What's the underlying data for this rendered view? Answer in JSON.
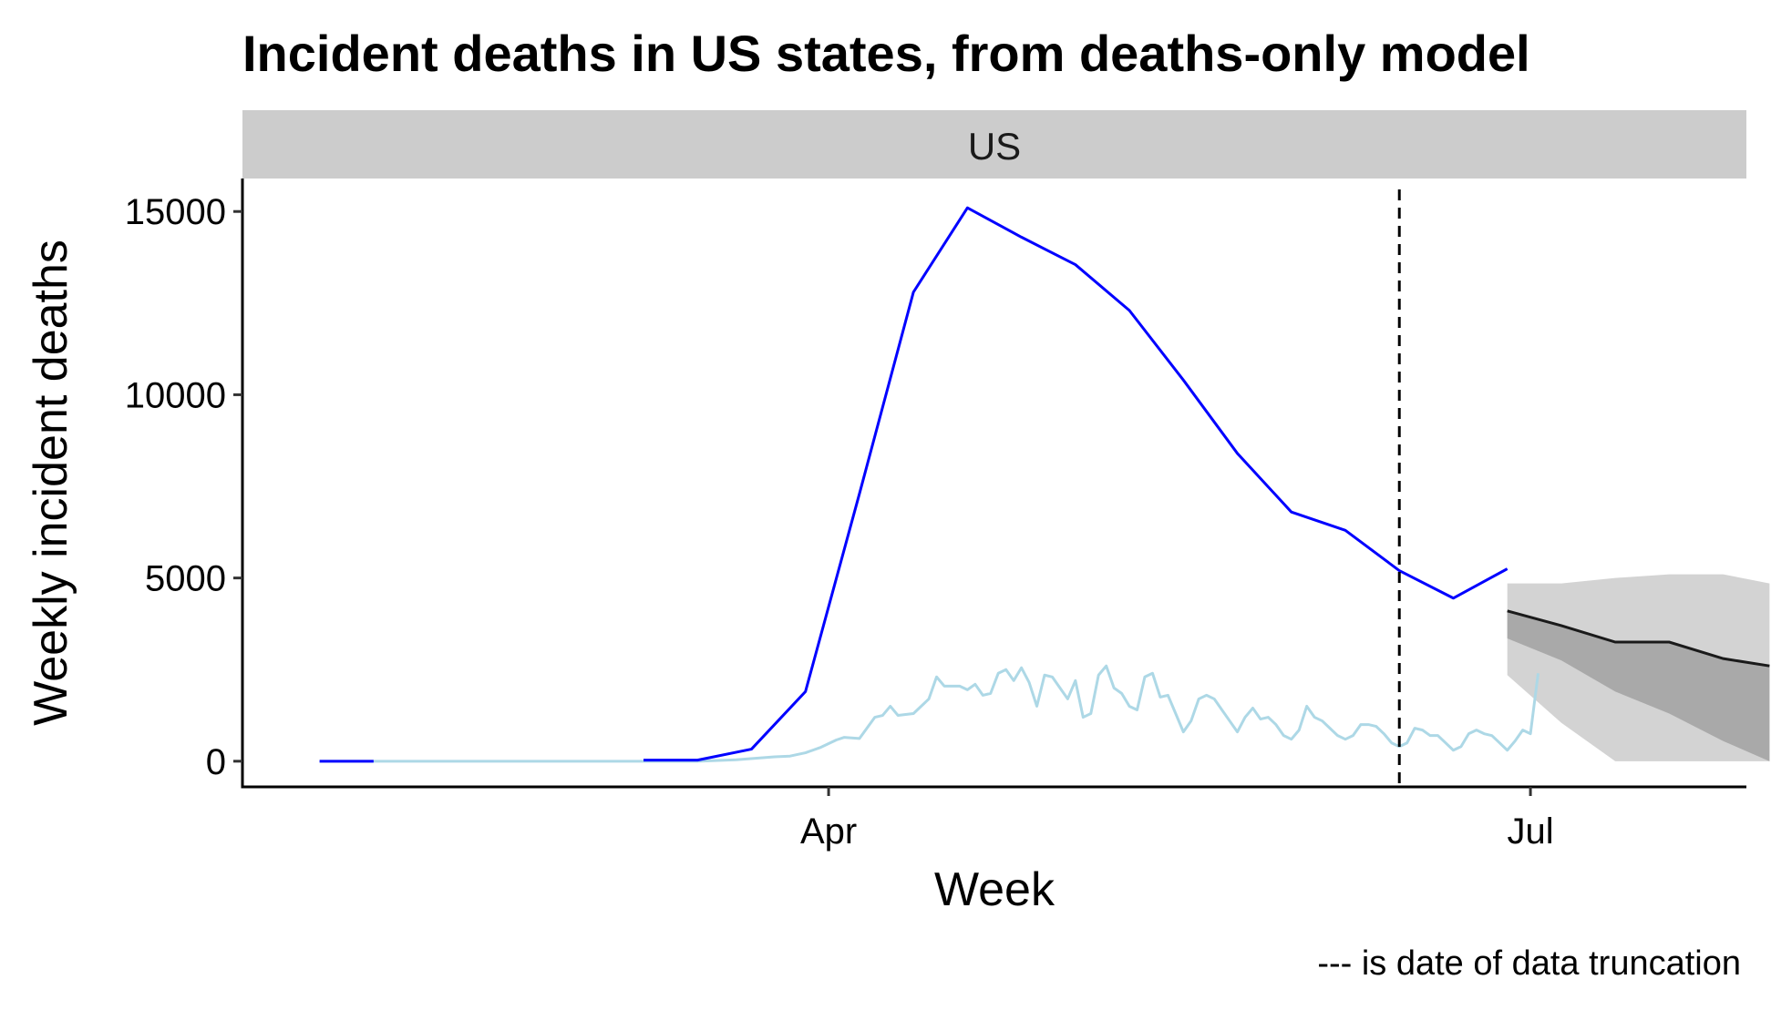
{
  "chart_data": {
    "type": "line",
    "title": "Incident deaths in US states, from deaths-only model",
    "facet": "US",
    "xlabel": "Week",
    "ylabel": "Weekly incident deaths",
    "caption": "--- is date of data truncation",
    "x_ticks": [
      {
        "label": "Apr",
        "date": "2020-04-01"
      },
      {
        "label": "Jul",
        "date": "2020-07-01"
      }
    ],
    "y_ticks": [
      0,
      5000,
      10000,
      15000
    ],
    "ylim": [
      -700,
      15900
    ],
    "xlim": [
      "2020-01-16",
      "2020-07-29"
    ],
    "truncation_date": "2020-06-14",
    "colors": {
      "weekly": "#0000ff",
      "daily": "#add8e6",
      "median": "#1a1a1a",
      "band_outer": "#d3d3d3",
      "band_inner": "#a9a9a9",
      "strip": "#cccccc"
    },
    "series": [
      {
        "name": "weekly",
        "points": [
          [
            "2020-01-26",
            0
          ],
          [
            "2020-02-02",
            0
          ],
          [
            "2020-03-08",
            30
          ],
          [
            "2020-03-15",
            30
          ],
          [
            "2020-03-22",
            330
          ],
          [
            "2020-03-29",
            1900
          ],
          [
            "2020-04-05",
            7300
          ],
          [
            "2020-04-12",
            12800
          ],
          [
            "2020-04-19",
            15100
          ],
          [
            "2020-04-26",
            14300
          ],
          [
            "2020-05-03",
            13550
          ],
          [
            "2020-05-10",
            12300
          ],
          [
            "2020-05-17",
            10400
          ],
          [
            "2020-05-24",
            8400
          ],
          [
            "2020-05-31",
            6800
          ],
          [
            "2020-06-07",
            6300
          ],
          [
            "2020-06-14",
            5200
          ],
          [
            "2020-06-21",
            4450
          ],
          [
            "2020-06-28",
            5250
          ]
        ]
      },
      {
        "name": "daily",
        "points": [
          [
            "2020-01-26",
            0
          ],
          [
            "2020-03-15",
            0
          ],
          [
            "2020-03-20",
            40
          ],
          [
            "2020-03-25",
            120
          ],
          [
            "2020-03-27",
            140
          ],
          [
            "2020-03-29",
            230
          ],
          [
            "2020-03-31",
            380
          ],
          [
            "2020-04-02",
            580
          ],
          [
            "2020-04-03",
            650
          ],
          [
            "2020-04-05",
            620
          ],
          [
            "2020-04-07",
            1200
          ],
          [
            "2020-04-08",
            1250
          ],
          [
            "2020-04-09",
            1500
          ],
          [
            "2020-04-10",
            1250
          ],
          [
            "2020-04-12",
            1300
          ],
          [
            "2020-04-14",
            1700
          ],
          [
            "2020-04-15",
            2300
          ],
          [
            "2020-04-16",
            2050
          ],
          [
            "2020-04-18",
            2050
          ],
          [
            "2020-04-19",
            1950
          ],
          [
            "2020-04-20",
            2100
          ],
          [
            "2020-04-21",
            1800
          ],
          [
            "2020-04-22",
            1850
          ],
          [
            "2020-04-23",
            2400
          ],
          [
            "2020-04-24",
            2500
          ],
          [
            "2020-04-25",
            2200
          ],
          [
            "2020-04-26",
            2550
          ],
          [
            "2020-04-27",
            2150
          ],
          [
            "2020-04-28",
            1500
          ],
          [
            "2020-04-29",
            2350
          ],
          [
            "2020-04-30",
            2300
          ],
          [
            "2020-05-01",
            2000
          ],
          [
            "2020-05-02",
            1700
          ],
          [
            "2020-05-03",
            2200
          ],
          [
            "2020-05-04",
            1200
          ],
          [
            "2020-05-05",
            1300
          ],
          [
            "2020-05-06",
            2350
          ],
          [
            "2020-05-07",
            2600
          ],
          [
            "2020-05-08",
            2000
          ],
          [
            "2020-05-09",
            1850
          ],
          [
            "2020-05-10",
            1500
          ],
          [
            "2020-05-11",
            1400
          ],
          [
            "2020-05-12",
            2300
          ],
          [
            "2020-05-13",
            2400
          ],
          [
            "2020-05-14",
            1750
          ],
          [
            "2020-05-15",
            1800
          ],
          [
            "2020-05-16",
            1300
          ],
          [
            "2020-05-17",
            800
          ],
          [
            "2020-05-18",
            1100
          ],
          [
            "2020-05-19",
            1700
          ],
          [
            "2020-05-20",
            1800
          ],
          [
            "2020-05-21",
            1700
          ],
          [
            "2020-05-22",
            1400
          ],
          [
            "2020-05-23",
            1100
          ],
          [
            "2020-05-24",
            800
          ],
          [
            "2020-05-25",
            1200
          ],
          [
            "2020-05-26",
            1450
          ],
          [
            "2020-05-27",
            1150
          ],
          [
            "2020-05-28",
            1200
          ],
          [
            "2020-05-29",
            1000
          ],
          [
            "2020-05-30",
            700
          ],
          [
            "2020-05-31",
            600
          ],
          [
            "2020-06-01",
            850
          ],
          [
            "2020-06-02",
            1500
          ],
          [
            "2020-06-03",
            1200
          ],
          [
            "2020-06-04",
            1100
          ],
          [
            "2020-06-05",
            900
          ],
          [
            "2020-06-06",
            700
          ],
          [
            "2020-06-07",
            600
          ],
          [
            "2020-06-08",
            700
          ],
          [
            "2020-06-09",
            1000
          ],
          [
            "2020-06-10",
            1000
          ],
          [
            "2020-06-11",
            950
          ],
          [
            "2020-06-12",
            750
          ],
          [
            "2020-06-13",
            500
          ],
          [
            "2020-06-14",
            400
          ],
          [
            "2020-06-15",
            500
          ],
          [
            "2020-06-16",
            900
          ],
          [
            "2020-06-17",
            850
          ],
          [
            "2020-06-18",
            700
          ],
          [
            "2020-06-19",
            700
          ],
          [
            "2020-06-20",
            500
          ],
          [
            "2020-06-21",
            300
          ],
          [
            "2020-06-22",
            400
          ],
          [
            "2020-06-23",
            750
          ],
          [
            "2020-06-24",
            850
          ],
          [
            "2020-06-25",
            750
          ],
          [
            "2020-06-26",
            700
          ],
          [
            "2020-06-27",
            500
          ],
          [
            "2020-06-28",
            300
          ],
          [
            "2020-06-29",
            550
          ],
          [
            "2020-06-30",
            850
          ],
          [
            "2020-07-01",
            750
          ],
          [
            "2020-07-02",
            2400
          ]
        ]
      }
    ],
    "forecast": {
      "dates": [
        "2020-06-28",
        "2020-07-05",
        "2020-07-12",
        "2020-07-19",
        "2020-07-26"
      ],
      "median": [
        4100,
        3700,
        3250,
        3250,
        2800
      ],
      "inner_low": [
        3350,
        2750,
        1900,
        1300,
        550
      ],
      "inner_high": [
        4100,
        3700,
        3250,
        3250,
        2800
      ],
      "outer_low": [
        2350,
        1050,
        0,
        0,
        0
      ],
      "outer_high": [
        4850,
        4850,
        5000,
        5100,
        5100
      ],
      "end": {
        "date": "2020-08-01",
        "median": 2600,
        "inner_low": 0,
        "outer_low": 0,
        "outer_high": 4850
      }
    }
  }
}
